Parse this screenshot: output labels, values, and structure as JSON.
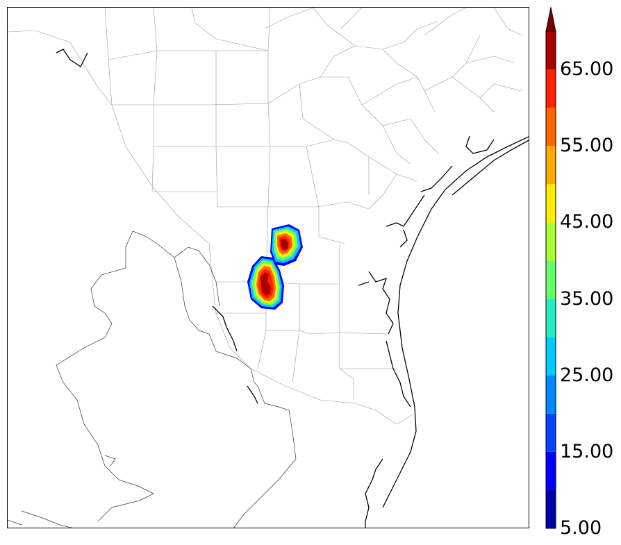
{
  "map": {
    "legend": {
      "colors": [
        "#0000aa",
        "#0000ff",
        "#0044ff",
        "#0088ff",
        "#00ccff",
        "#22eebb",
        "#66ff66",
        "#aaff33",
        "#ffee00",
        "#ffaa00",
        "#ff6600",
        "#ff2200",
        "#aa0000",
        "#7a0000"
      ],
      "extend": "max",
      "ticks": [
        {
          "value": "5.00"
        },
        {
          "value": "15.00"
        },
        {
          "value": "25.00"
        },
        {
          "value": "35.00"
        },
        {
          "value": "45.00"
        },
        {
          "value": "55.00"
        },
        {
          "value": "65.00"
        }
      ]
    },
    "field": {
      "type": "filled contour",
      "cells": 2,
      "max_level": "65+"
    }
  }
}
